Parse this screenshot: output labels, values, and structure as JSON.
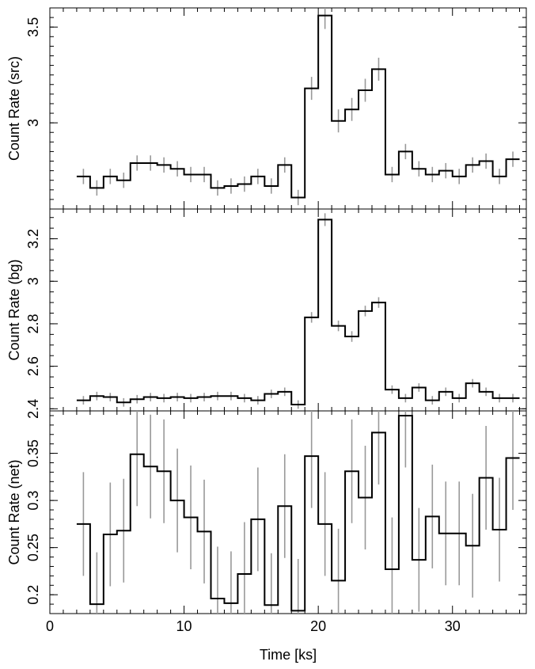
{
  "chart_data": {
    "type": "line",
    "xlabel": "Time [ks]",
    "xlim": [
      0,
      35.5
    ],
    "x_ticks": [
      0,
      10,
      20,
      30
    ],
    "bin_width": 1,
    "x": [
      2,
      3,
      4,
      5,
      6,
      7,
      8,
      9,
      10,
      11,
      12,
      13,
      14,
      15,
      16,
      17,
      18,
      19,
      20,
      21,
      22,
      23,
      24,
      25,
      26,
      27,
      28,
      29,
      30,
      31,
      32,
      33,
      34
    ],
    "panels": [
      {
        "ylabel": "Count Rate (src)",
        "ylim": [
          2.55,
          3.6
        ],
        "y_major": [
          3.0,
          3.5
        ],
        "y_minor_step": 0.05,
        "values": [
          2.72,
          2.66,
          2.72,
          2.7,
          2.79,
          2.79,
          2.78,
          2.76,
          2.73,
          2.73,
          2.66,
          2.67,
          2.68,
          2.72,
          2.67,
          2.78,
          2.61,
          3.18,
          3.56,
          3.01,
          3.07,
          3.17,
          3.28,
          2.73,
          2.85,
          2.76,
          2.73,
          2.75,
          2.72,
          2.78,
          2.8,
          2.72,
          2.81
        ],
        "errors": [
          0.04,
          0.04,
          0.04,
          0.04,
          0.04,
          0.04,
          0.04,
          0.04,
          0.04,
          0.04,
          0.04,
          0.04,
          0.04,
          0.04,
          0.04,
          0.04,
          0.04,
          0.06,
          0.07,
          0.06,
          0.06,
          0.06,
          0.06,
          0.04,
          0.04,
          0.04,
          0.04,
          0.04,
          0.04,
          0.04,
          0.04,
          0.04,
          0.04
        ]
      },
      {
        "ylabel": "Count Rate (bg)",
        "ylim": [
          2.39,
          3.34
        ],
        "y_major": [
          2.4,
          2.6,
          2.8,
          3.0,
          3.2
        ],
        "y_minor_step": 0.05,
        "values": [
          2.44,
          2.46,
          2.455,
          2.43,
          2.445,
          2.455,
          2.45,
          2.455,
          2.45,
          2.455,
          2.46,
          2.46,
          2.45,
          2.44,
          2.47,
          2.48,
          2.42,
          2.83,
          3.29,
          2.79,
          2.74,
          2.86,
          2.9,
          2.49,
          2.45,
          2.5,
          2.44,
          2.48,
          2.45,
          2.52,
          2.48,
          2.45,
          2.45
        ],
        "errors": [
          0.02,
          0.02,
          0.02,
          0.02,
          0.02,
          0.02,
          0.02,
          0.02,
          0.02,
          0.02,
          0.02,
          0.02,
          0.02,
          0.02,
          0.02,
          0.02,
          0.02,
          0.025,
          0.03,
          0.025,
          0.025,
          0.025,
          0.025,
          0.02,
          0.02,
          0.02,
          0.02,
          0.02,
          0.02,
          0.02,
          0.02,
          0.02,
          0.02
        ]
      },
      {
        "ylabel": "Count Rate (net)",
        "ylim": [
          0.18,
          0.395
        ],
        "y_major": [
          0.2,
          0.25,
          0.3,
          0.35
        ],
        "y_minor_step": 0.01,
        "values": [
          0.275,
          0.19,
          0.264,
          0.268,
          0.349,
          0.336,
          0.331,
          0.3,
          0.282,
          0.267,
          0.196,
          0.191,
          0.222,
          0.28,
          0.189,
          0.294,
          0.183,
          0.347,
          0.275,
          0.215,
          0.331,
          0.303,
          0.372,
          0.227,
          0.39,
          0.237,
          0.283,
          0.265,
          0.265,
          0.252,
          0.324,
          0.269,
          0.345
        ],
        "errors": [
          0.055,
          0.055,
          0.055,
          0.055,
          0.055,
          0.055,
          0.055,
          0.055,
          0.055,
          0.055,
          0.055,
          0.055,
          0.055,
          0.055,
          0.055,
          0.055,
          0.055,
          0.055,
          0.055,
          0.055,
          0.055,
          0.055,
          0.055,
          0.055,
          0.055,
          0.055,
          0.055,
          0.055,
          0.055,
          0.055,
          0.055,
          0.055,
          0.055
        ]
      }
    ]
  }
}
